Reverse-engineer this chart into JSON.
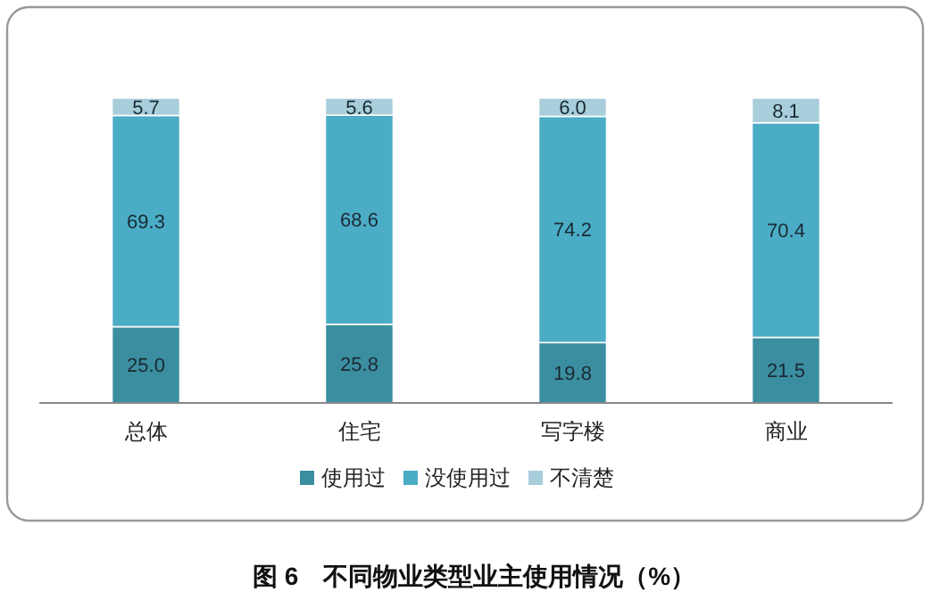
{
  "chart_data": {
    "type": "bar",
    "stacked": true,
    "title": "图 6　不同物业类型业主使用情况（%）",
    "categories": [
      "总体",
      "住宅",
      "写字楼",
      "商业"
    ],
    "series": [
      {
        "name": "使用过",
        "color": "#3b8ea0",
        "values": [
          25.0,
          25.8,
          19.8,
          21.5
        ],
        "value_labels": [
          "25.0",
          "25.8",
          "19.8",
          "21.5"
        ]
      },
      {
        "name": "没使用过",
        "color": "#4bacc6",
        "values": [
          69.3,
          68.6,
          74.2,
          70.4
        ],
        "value_labels": [
          "69.3",
          "68.6",
          "74.2",
          "70.4"
        ]
      },
      {
        "name": "不清楚",
        "color": "#a8cedb",
        "values": [
          5.7,
          5.6,
          6.0,
          8.1
        ],
        "value_labels": [
          "5.7",
          "5.6",
          "6.0",
          "8.1"
        ]
      }
    ],
    "legend": "bottom"
  }
}
